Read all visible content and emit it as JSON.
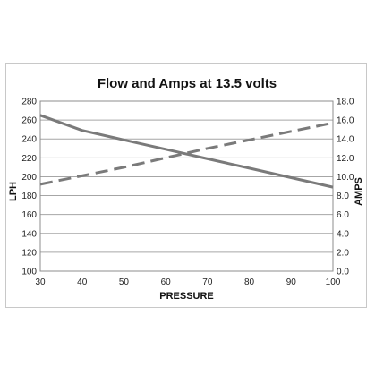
{
  "chart_data": {
    "type": "line",
    "title": "Flow and Amps at 13.5 volts",
    "xlabel": "PRESSURE",
    "ylabel": "LPH",
    "y2label": "AMPS",
    "xlim": [
      30,
      100
    ],
    "ylim": [
      100,
      280
    ],
    "y2lim": [
      0,
      18
    ],
    "x_ticks": [
      "30",
      "40",
      "50",
      "60",
      "70",
      "80",
      "90",
      "100"
    ],
    "y_ticks": [
      "100",
      "120",
      "140",
      "160",
      "180",
      "200",
      "220",
      "240",
      "260",
      "280"
    ],
    "y2_ticks": [
      "0.0",
      "2.0",
      "4.0",
      "6.0",
      "8.0",
      "10.0",
      "12.0",
      "14.0",
      "16.0",
      "18.0"
    ],
    "grid": true,
    "series": [
      {
        "axis": "left",
        "style": "solid",
        "color": "#7a7a7a",
        "x": [
          30,
          40,
          50,
          60,
          70,
          80,
          90,
          100
        ],
        "values": [
          265,
          249,
          239,
          229,
          219,
          209,
          199,
          189
        ]
      },
      {
        "axis": "right",
        "style": "dashed",
        "color": "#7a7a7a",
        "x": [
          30,
          40,
          50,
          60,
          70,
          80,
          90,
          100
        ],
        "values": [
          9.2,
          10.1,
          11.0,
          12.0,
          13.0,
          13.9,
          14.8,
          15.7
        ]
      }
    ]
  }
}
